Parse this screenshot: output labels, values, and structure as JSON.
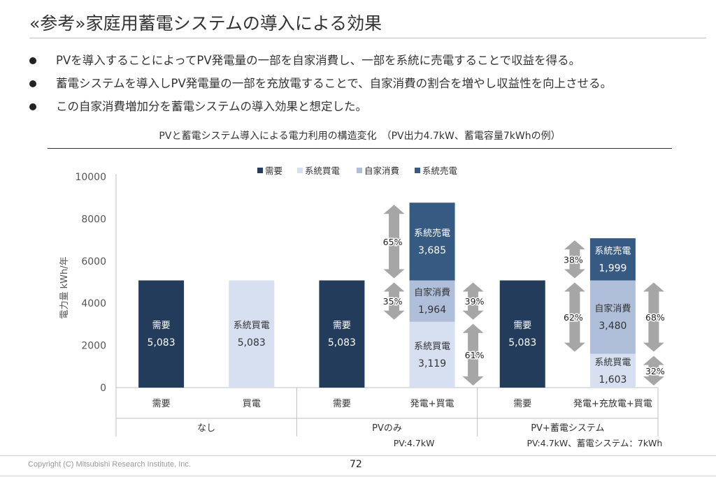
{
  "slide": {
    "title": "«参考»家庭用蓄電システムの導入による効果",
    "bullets": [
      "PVを導入することによってPV発電量の一部を自家消費し、一部を系統に売電することで収益を得る。",
      "蓄電システムを導入しPV発電量の一部を充放電することで、自家消費の割合を増やし収益性を向上させる。",
      "この自家消費増加分を蓄電システムの導入効果と想定した。"
    ],
    "copyright": "Copyright (C) Mitsubishi Research Institute, Inc.",
    "page_number": "72"
  },
  "chart_data": {
    "type": "bar",
    "stacked": true,
    "title": "PVと蓄電システム導入による電力利用の構造変化　（PV出力4.7kW、蓄電容量7kWhの例）",
    "ylabel": "電力量 kWh/年",
    "ylim": [
      0,
      10000
    ],
    "yticks": [
      0,
      2000,
      4000,
      6000,
      8000,
      10000
    ],
    "legend": [
      "需要",
      "系統買電",
      "自家消費",
      "系統売電"
    ],
    "legend_position": "top",
    "colors": {
      "需要": "#243c5c",
      "系統買電": "#d6e0f0",
      "自家消費": "#afbfd9",
      "系統売電": "#375a82",
      "arrow": "#a6a6a6"
    },
    "categories": [
      "需要",
      "買電",
      "需要",
      "発電+買電",
      "需要",
      "発電+充放電+買電"
    ],
    "groups": [
      {
        "label": "なし",
        "categories": [
          0,
          1
        ]
      },
      {
        "label": "PVのみ",
        "categories": [
          2,
          3
        ],
        "note": "PV:4.7kW"
      },
      {
        "label": "PV+蓄電システム",
        "categories": [
          4,
          5
        ],
        "note": "PV:4.7kW、蓄電システム：7kWh"
      }
    ],
    "bars": [
      {
        "segments": [
          {
            "series": "需要",
            "value": 5083,
            "name": "需要",
            "label": "5,083"
          }
        ]
      },
      {
        "segments": [
          {
            "series": "系統買電",
            "value": 5083,
            "name": "系統買電",
            "label": "5,083"
          }
        ]
      },
      {
        "segments": [
          {
            "series": "需要",
            "value": 5083,
            "name": "需要",
            "label": "5,083"
          }
        ]
      },
      {
        "segments": [
          {
            "series": "系統買電",
            "value": 3119,
            "name": "系統買電",
            "label": "3,119"
          },
          {
            "series": "自家消費",
            "value": 1964,
            "name": "自家消費",
            "label": "1,964"
          },
          {
            "series": "系統売電",
            "value": 3685,
            "name": "系統売電",
            "label": "3,685"
          }
        ]
      },
      {
        "segments": [
          {
            "series": "需要",
            "value": 5083,
            "name": "需要",
            "label": "5,083"
          }
        ]
      },
      {
        "segments": [
          {
            "series": "系統買電",
            "value": 1603,
            "name": "系統買電",
            "label": "1,603"
          },
          {
            "series": "自家消費",
            "value": 3480,
            "name": "自家消費",
            "label": "3,480"
          },
          {
            "series": "系統売電",
            "value": 1999,
            "name": "系統売電",
            "label": "1,999"
          }
        ]
      }
    ],
    "share_annotations": [
      {
        "bar": 3,
        "side": "left",
        "from": 5083,
        "to": 8768,
        "label": "65%"
      },
      {
        "bar": 3,
        "side": "left",
        "from": 3119,
        "to": 5083,
        "label": "35%"
      },
      {
        "bar": 3,
        "side": "right",
        "from": 3119,
        "to": 5083,
        "label": "39%"
      },
      {
        "bar": 3,
        "side": "right",
        "from": 0,
        "to": 3119,
        "label": "61%"
      },
      {
        "bar": 5,
        "side": "left",
        "from": 5083,
        "to": 7082,
        "label": "38%"
      },
      {
        "bar": 5,
        "side": "left",
        "from": 1603,
        "to": 5083,
        "label": "62%"
      },
      {
        "bar": 5,
        "side": "right",
        "from": 1603,
        "to": 5083,
        "label": "68%"
      },
      {
        "bar": 5,
        "side": "right",
        "from": 0,
        "to": 1603,
        "label": "32%"
      }
    ]
  }
}
